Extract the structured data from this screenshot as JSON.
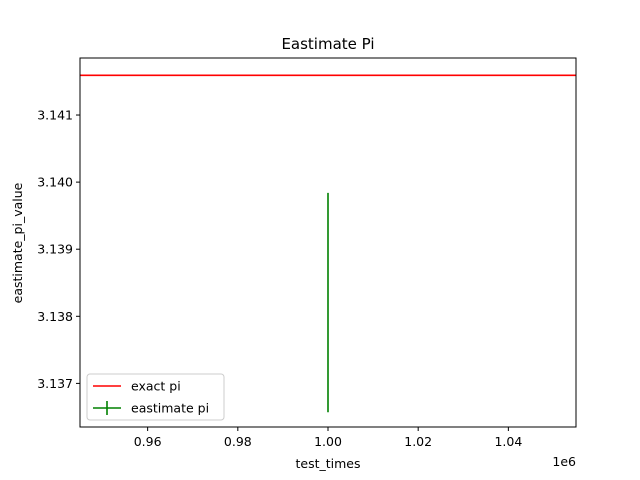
{
  "chart_data": {
    "type": "line",
    "title": "Eastimate Pi",
    "xlabel": "test_times",
    "ylabel": "eastimate_pi_value",
    "x_offset_label": "1e6",
    "xlim": [
      0.945,
      1.055
    ],
    "ylim": [
      3.13635,
      3.14185
    ],
    "x_tick_values": [
      0.96,
      0.98,
      1.0,
      1.02,
      1.04
    ],
    "x_tick_labels": [
      "0.96",
      "0.98",
      "1.00",
      "1.02",
      "1.04"
    ],
    "y_tick_values": [
      3.137,
      3.138,
      3.139,
      3.14,
      3.141
    ],
    "y_tick_labels": [
      "3.137",
      "3.138",
      "3.139",
      "3.140",
      "3.141"
    ],
    "grid": false,
    "legend_position": "lower-left",
    "series": [
      {
        "name": "exact pi",
        "kind": "hline",
        "y": 3.14159265,
        "color": "#ff0000"
      },
      {
        "name": "eastimate pi",
        "kind": "errorbar",
        "x": [
          1.0
        ],
        "y": [
          3.1382
        ],
        "yerr_low": [
          3.13657
        ],
        "yerr_high": [
          3.13984
        ],
        "color": "#008000"
      }
    ]
  }
}
